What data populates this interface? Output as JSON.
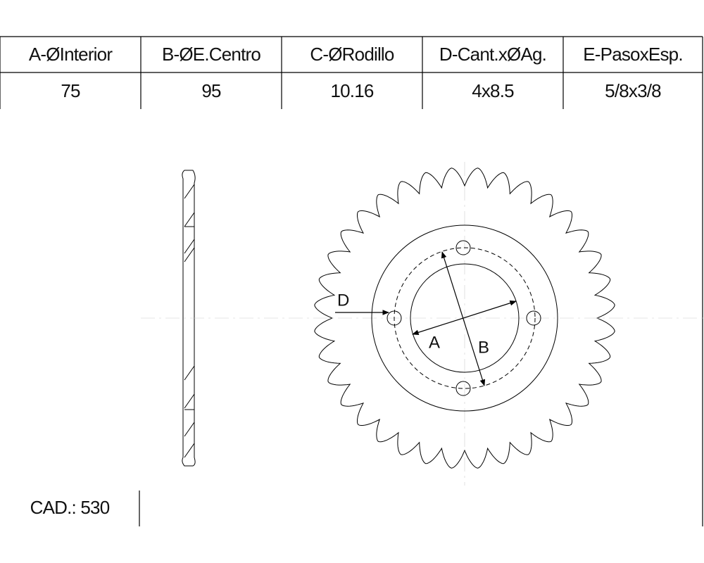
{
  "table": {
    "headers": [
      "A-ØInterior",
      "B-ØE.Centro",
      "C-ØRodillo",
      "D-Cant.xØAg.",
      "E-PasoxEsp."
    ],
    "rows": [
      [
        "75",
        "95",
        "10.16",
        "4x8.5",
        "5/8x3/8"
      ]
    ]
  },
  "cad": "CAD.: 530",
  "labels": {
    "a": "A",
    "b": "B",
    "d": "D"
  }
}
